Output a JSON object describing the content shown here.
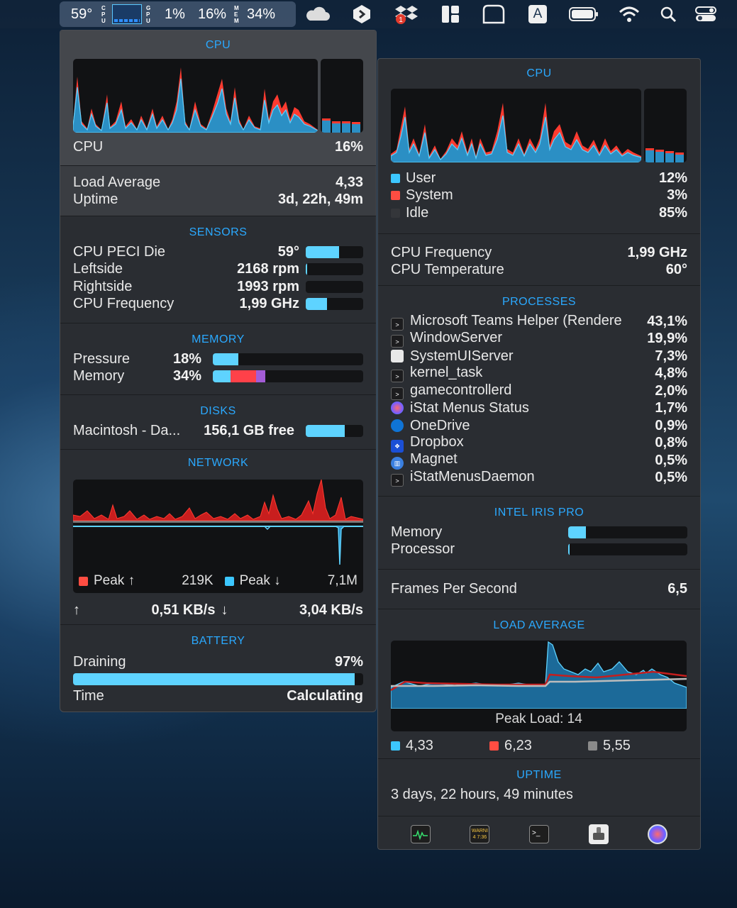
{
  "menubar": {
    "temp": "59°",
    "cpu_vlabel": [
      "C",
      "P",
      "U"
    ],
    "gpu_vlabel": [
      "G",
      "P",
      "U"
    ],
    "gpu_pct": "1%",
    "cpu_pct": "16%",
    "mem_vlabel": [
      "M",
      "E",
      "M"
    ],
    "mem_pct": "34%",
    "dropbox_badge": "1",
    "keyboard_label": "A",
    "icons": [
      "onedrive-icon",
      "istat-icon",
      "dropbox-icon",
      "magnet-icon",
      "window-icon",
      "keyboard-input-icon",
      "battery-icon",
      "wifi-icon",
      "search-icon",
      "control-center-icon"
    ]
  },
  "left": {
    "cpu_header": "CPU",
    "cpu_label": "CPU",
    "cpu_value": "16%",
    "load_label": "Load Average",
    "load_value": "4,33",
    "uptime_label": "Uptime",
    "uptime_value": "3d, 22h, 49m",
    "sensors_header": "SENSORS",
    "sensors": [
      {
        "label": "CPU PECI Die",
        "value": "59°",
        "level": 0.58
      },
      {
        "label": "Leftside",
        "value": "2168 rpm",
        "level": 0.02
      },
      {
        "label": "Rightside",
        "value": "1993 rpm",
        "level": 0.0
      },
      {
        "label": "CPU Frequency",
        "value": "1,99 GHz",
        "level": 0.37
      }
    ],
    "memory_header": "MEMORY",
    "pressure_label": "Pressure",
    "pressure_value": "18%",
    "pressure_level": 0.17,
    "memory_label": "Memory",
    "memory_value": "34%",
    "memory_segments": [
      0.12,
      0.17,
      0.06
    ],
    "disks_header": "DISKS",
    "disk_label": "Macintosh - Da...",
    "disk_value": "156,1 GB free",
    "disk_level": 0.68,
    "network_header": "NETWORK",
    "peak_up_label": "Peak ↑",
    "peak_up_value": "219K",
    "peak_down_label": "Peak ↓",
    "peak_down_value": "7,1M",
    "up_arrow": "↑",
    "up_rate": "0,51 KB/s",
    "down_arrow": "↓",
    "down_rate": "3,04 KB/s",
    "battery_header": "BATTERY",
    "battery_state": "Draining",
    "battery_value": "97%",
    "battery_level": 0.97,
    "time_label": "Time",
    "time_value": "Calculating"
  },
  "right": {
    "cpu_header": "CPU",
    "legend": [
      {
        "label": "User",
        "value": "12%",
        "color": "#3cc7ff"
      },
      {
        "label": "System",
        "value": "3%",
        "color": "#ff4d42"
      },
      {
        "label": "Idle",
        "value": "85%",
        "color": "#34363a"
      }
    ],
    "freq_label": "CPU Frequency",
    "freq_value": "1,99 GHz",
    "temp_label": "CPU Temperature",
    "temp_value": "60°",
    "processes_header": "PROCESSES",
    "processes": [
      {
        "name": "Microsoft Teams Helper (Rendere",
        "value": "43,1%",
        "icon": "terminal-icon"
      },
      {
        "name": "WindowServer",
        "value": "19,9%",
        "icon": "terminal-icon"
      },
      {
        "name": "SystemUIServer",
        "value": "7,3%",
        "icon": "app-icon"
      },
      {
        "name": "kernel_task",
        "value": "4,8%",
        "icon": "terminal-icon"
      },
      {
        "name": "gamecontrollerd",
        "value": "2,0%",
        "icon": "terminal-icon"
      },
      {
        "name": "iStat Menus Status",
        "value": "1,7%",
        "icon": "istat-icon"
      },
      {
        "name": "OneDrive",
        "value": "0,9%",
        "icon": "onedrive-icon"
      },
      {
        "name": "Dropbox",
        "value": "0,8%",
        "icon": "dropbox-icon"
      },
      {
        "name": "Magnet",
        "value": "0,5%",
        "icon": "magnet-icon"
      },
      {
        "name": "iStatMenusDaemon",
        "value": "0,5%",
        "icon": "terminal-icon"
      }
    ],
    "gpu_header": "INTEL IRIS PRO",
    "gpu_memory_label": "Memory",
    "gpu_memory_level": 0.15,
    "gpu_processor_label": "Processor",
    "gpu_processor_level": 0.01,
    "fps_label": "Frames Per Second",
    "fps_value": "6,5",
    "load_header": "LOAD AVERAGE",
    "peak_load": "Peak Load: 14",
    "load_legend": [
      {
        "value": "4,33",
        "color": "#3cc7ff"
      },
      {
        "value": "6,23",
        "color": "#ff4d42"
      },
      {
        "value": "5,55",
        "color": "#8a8a8a"
      }
    ],
    "uptime_header": "UPTIME",
    "uptime_text": "3 days, 22 hours, 49 minutes",
    "dock_icons": [
      "activity-monitor-icon",
      "console-icon",
      "terminal-icon",
      "system-information-icon",
      "disk-utility-icon"
    ],
    "console_icon_text": "WARNI 4 7:36"
  }
}
